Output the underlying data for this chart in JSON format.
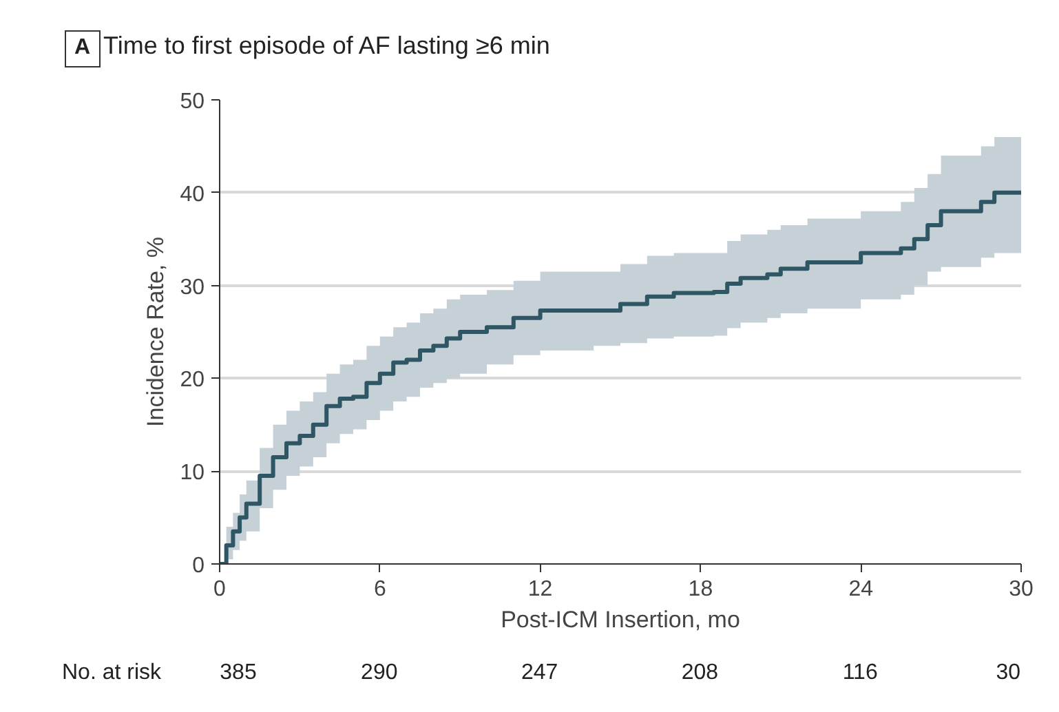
{
  "chart_data": {
    "type": "step",
    "title": "Time to first episode of AF lasting ≥6 min",
    "xlabel": "Post-ICM Insertion, mo",
    "ylabel": "Incidence Rate, %",
    "x": [
      0,
      0.25,
      0.5,
      0.75,
      1,
      1.5,
      2,
      2.5,
      3,
      3.5,
      4,
      4.5,
      5,
      5.5,
      6,
      6.5,
      7,
      7.5,
      8,
      8.5,
      9,
      10,
      11,
      12,
      14,
      15,
      16,
      17,
      18.5,
      19,
      19.5,
      20.5,
      21,
      22,
      23,
      24,
      25.5,
      26,
      26.5,
      27,
      28.5,
      29,
      30
    ],
    "series": [
      {
        "color": "#2f5664",
        "values": [
          0,
          2,
          3.5,
          5,
          6.5,
          9.5,
          11.5,
          13,
          13.8,
          15,
          17,
          17.8,
          18,
          19.5,
          20.5,
          21.7,
          22,
          23,
          23.5,
          24.3,
          25,
          25.5,
          26.5,
          27.3,
          27.3,
          28,
          28.8,
          29.2,
          29.3,
          30.2,
          30.8,
          31.2,
          31.8,
          32.5,
          32.5,
          33.5,
          34,
          35,
          36.5,
          38,
          39,
          40,
          40
        ],
        "lower": [
          0,
          0.5,
          1.5,
          2.5,
          3.5,
          6,
          8,
          9.5,
          10.5,
          11.5,
          13,
          14,
          14.5,
          15.5,
          16.5,
          17.5,
          18,
          19,
          19.5,
          20,
          20.5,
          21.5,
          22.5,
          23,
          23.5,
          23.8,
          24.3,
          24.5,
          24.6,
          25.4,
          26,
          26.5,
          27,
          27.5,
          27.5,
          28.5,
          29,
          30,
          31.5,
          32,
          33,
          33.5,
          33.5
        ],
        "upper": [
          0,
          4,
          5.5,
          7.5,
          9,
          12.5,
          15,
          16.5,
          17.5,
          18.5,
          20.5,
          21.5,
          22,
          23.5,
          24.5,
          25.5,
          26,
          27,
          27.5,
          28.5,
          29,
          29.5,
          30.5,
          31.5,
          31.5,
          32.3,
          33.2,
          33.5,
          33.5,
          34.8,
          35.5,
          36,
          36.5,
          37.2,
          37.2,
          38,
          39,
          40.5,
          42,
          44,
          45,
          46,
          46
        ]
      }
    ],
    "xlim": [
      0,
      30
    ],
    "ylim": [
      0,
      50
    ],
    "xticks": [
      0,
      6,
      12,
      18,
      24,
      30
    ],
    "yticks": [
      0,
      10,
      20,
      30,
      40,
      50
    ],
    "grid": "y",
    "annotations": [
      "A",
      "No. at risk",
      "385",
      "290",
      "247",
      "208",
      "116",
      "30"
    ]
  }
}
